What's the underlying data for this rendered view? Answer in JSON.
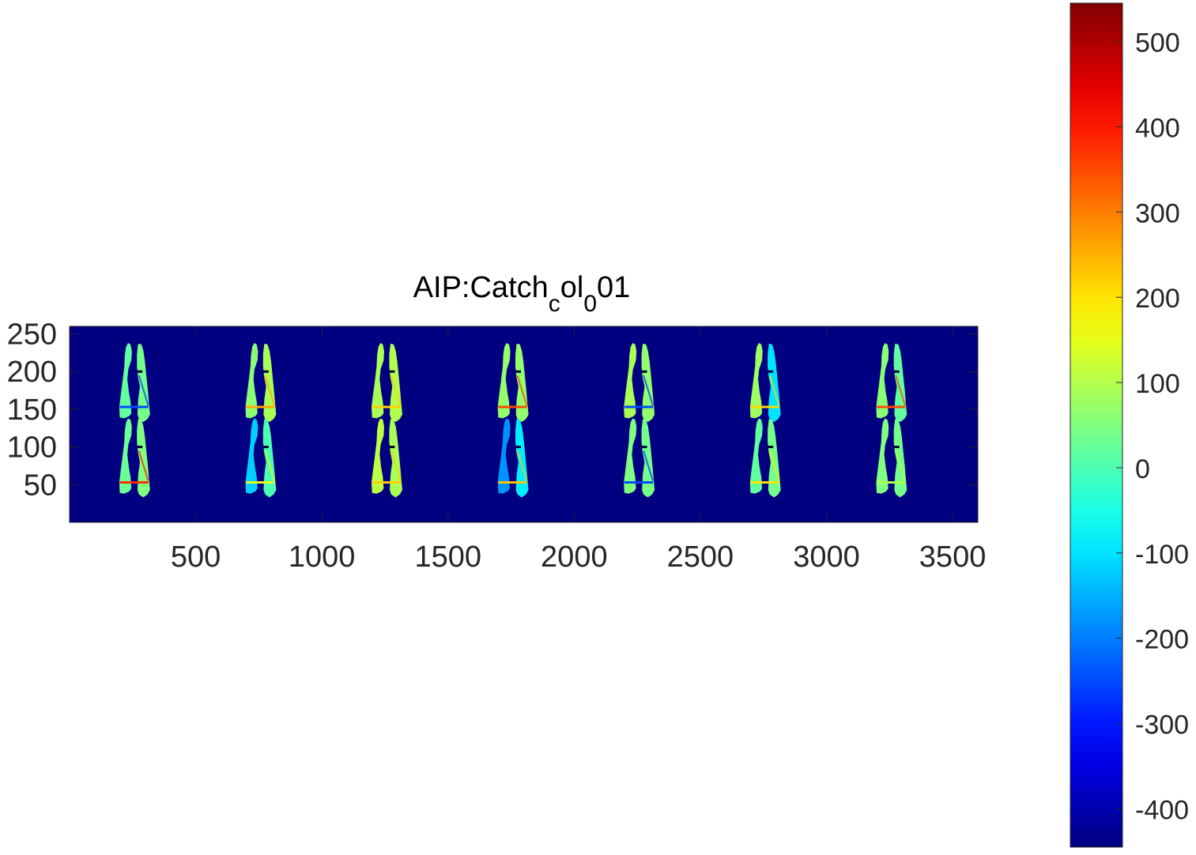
{
  "chart_data": {
    "type": "heatmap",
    "title_parts": [
      {
        "text": "AIP:Catch",
        "sub": false
      },
      {
        "text": "c",
        "sub": true
      },
      {
        "text": "ol",
        "sub": false
      },
      {
        "text": "0",
        "sub": true
      },
      {
        "text": "01",
        "sub": false
      }
    ],
    "xlim": [
      0,
      3600
    ],
    "ylim": [
      0,
      260
    ],
    "x_ticks": [
      500,
      1000,
      1500,
      2000,
      2500,
      3000,
      3500
    ],
    "y_ticks": [
      50,
      100,
      150,
      200,
      250
    ],
    "colorbar": {
      "colormap": "jet",
      "clim": [
        -445,
        545
      ],
      "ticks": [
        500,
        400,
        300,
        200,
        100,
        0,
        -100,
        -200,
        -300,
        -400
      ]
    },
    "grid": "off",
    "background_value": -445,
    "panel_layout": {
      "rows": 2,
      "cols": 7
    },
    "panel_centers_x": [
      257,
      757,
      1257,
      1757,
      2257,
      2757,
      3257
    ],
    "panel_centers_y": [
      185,
      85
    ],
    "panels": [
      {
        "row": 0,
        "col": 0,
        "left_value": 20,
        "right_value": 40,
        "fissure_value": -250
      },
      {
        "row": 0,
        "col": 1,
        "left_value": 60,
        "right_value": 90,
        "fissure_value": 260
      },
      {
        "row": 0,
        "col": 2,
        "left_value": 90,
        "right_value": 100,
        "fissure_value": 220
      },
      {
        "row": 0,
        "col": 3,
        "left_value": 70,
        "right_value": 70,
        "fissure_value": 350
      },
      {
        "row": 0,
        "col": 4,
        "left_value": 90,
        "right_value": 70,
        "fissure_value": -250
      },
      {
        "row": 0,
        "col": 5,
        "left_value": 80,
        "right_value": -100,
        "fissure_value": 210
      },
      {
        "row": 0,
        "col": 6,
        "left_value": 60,
        "right_value": 20,
        "fissure_value": 350
      },
      {
        "row": 1,
        "col": 0,
        "left_value": 30,
        "right_value": 50,
        "fissure_value": 380
      },
      {
        "row": 1,
        "col": 1,
        "left_value": -120,
        "right_value": 0,
        "fissure_value": 150
      },
      {
        "row": 1,
        "col": 2,
        "left_value": 110,
        "right_value": 90,
        "fissure_value": 220
      },
      {
        "row": 1,
        "col": 3,
        "left_value": -180,
        "right_value": -90,
        "fissure_value": 230
      },
      {
        "row": 1,
        "col": 4,
        "left_value": 50,
        "right_value": 40,
        "fissure_value": -250
      },
      {
        "row": 1,
        "col": 5,
        "left_value": 20,
        "right_value": 40,
        "fissure_value": 200
      },
      {
        "row": 1,
        "col": 6,
        "left_value": 50,
        "right_value": 40,
        "fissure_value": 100
      }
    ]
  }
}
